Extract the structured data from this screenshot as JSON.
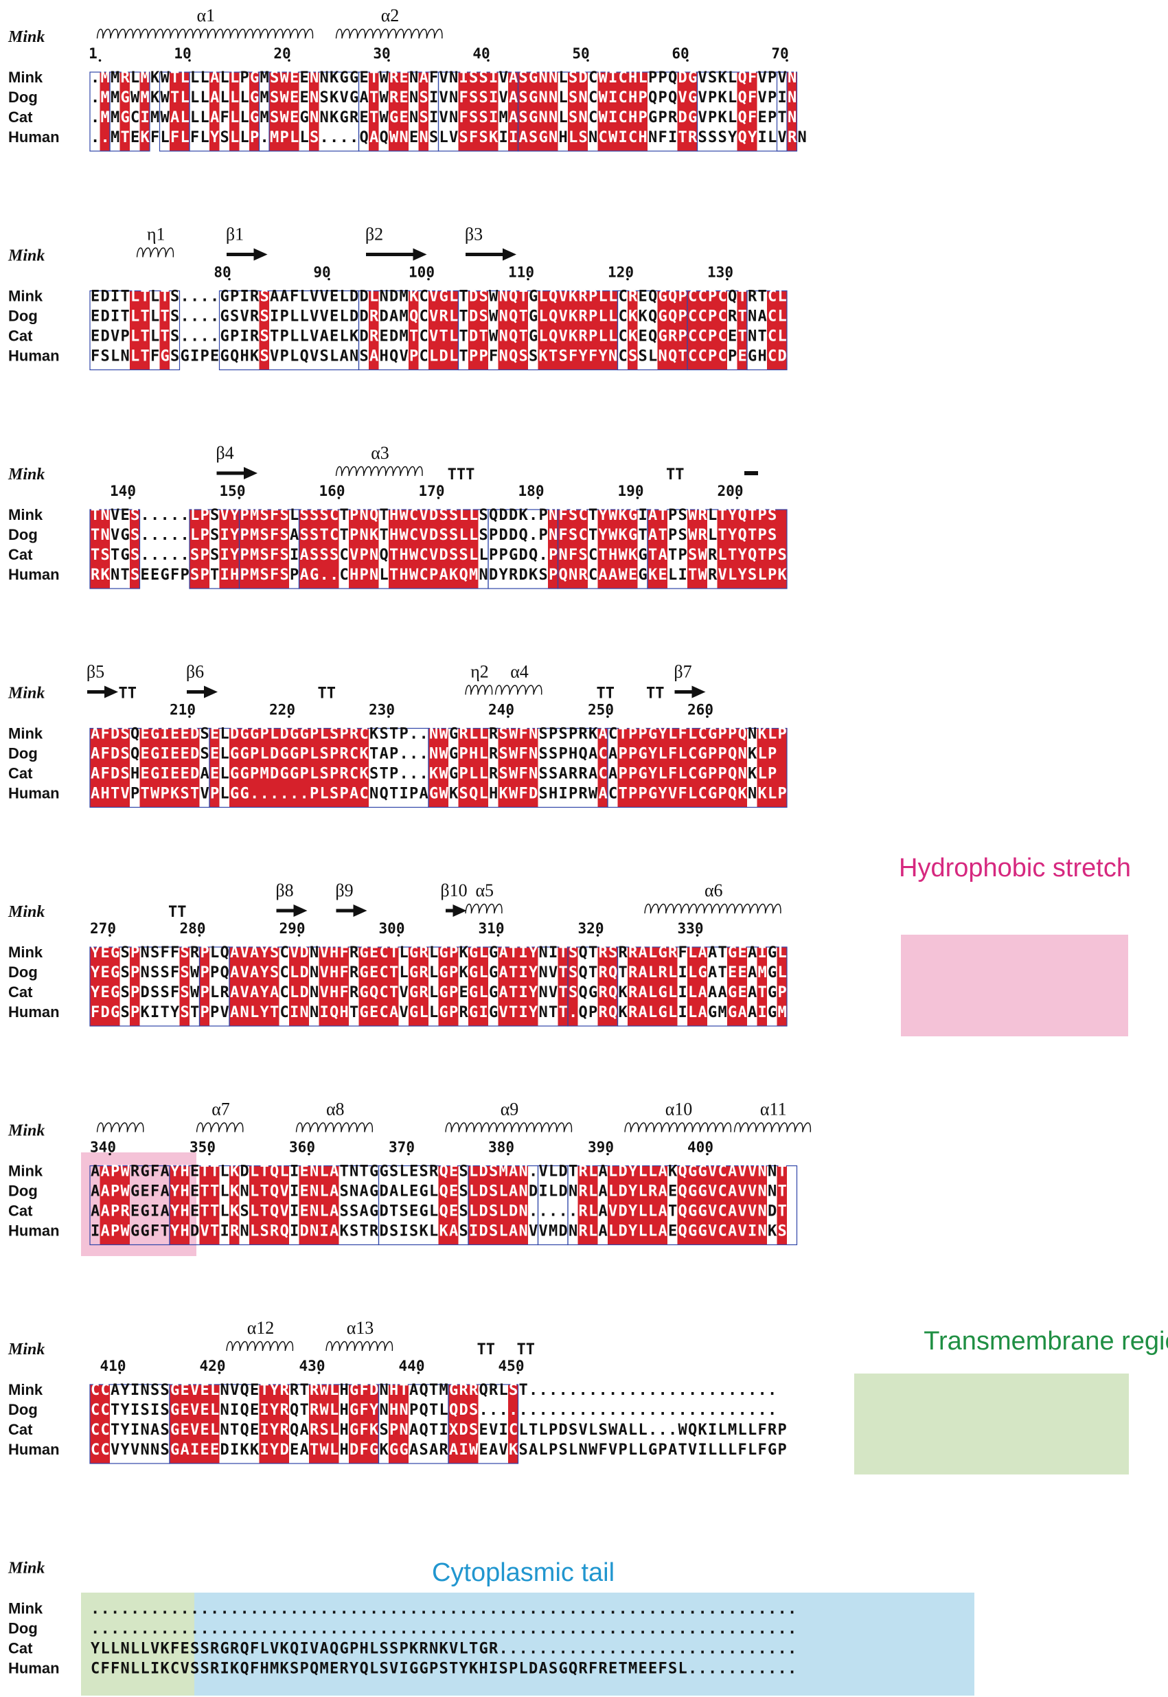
{
  "reference_label": "Mink",
  "species": [
    "Mink",
    "Dog",
    "Cat",
    "Human"
  ],
  "colors": {
    "identical_bg": "#d6212b",
    "identical_fg": "#ffffff",
    "similar_fg": "#d6212b",
    "box": "#2f45a8",
    "text": "#111111",
    "hydrophobic_bg": "#f4c2d7",
    "hydrophobic_label": "#d6287f",
    "tm_bg": "#d5e6c5",
    "tm_label": "#1f8f43",
    "cyto_bg": "#bfe0f0",
    "cyto_label": "#2196cf"
  },
  "blocks": [
    {
      "rows": [
        ".MMRLMKWTLLLALLPGMSWEENNKGGETWRENAFVNISSIVASGNNLSDCWICHLPPQDGVSKLQFVPVN",
        ".MMGWMKWTLLLALLLGMSWEENSKVGATWRENSIVNFSSIVASGNNLSNCWICHPQPQVGVPKLQFVPIN",
        ".MMGCIMWALLLAFLLGMSWEGNNKGRETWGENSIVNFSSIMASGNNLSNCWICHPGPRDGVPKLQFEPTN",
        "..MTEKFLFLFLYSLLP.MPLLS....QAQWNENSLVSFSKIIASGNHLSNCWICHNFITRSSSYQYILVRN"
      ],
      "ticks": [
        {
          "c": 1,
          "t": "1"
        },
        {
          "c": 10,
          "t": "10"
        },
        {
          "c": 20,
          "t": "20"
        },
        {
          "c": 30,
          "t": "30"
        },
        {
          "c": 40,
          "t": "40"
        },
        {
          "c": 50,
          "t": "50"
        },
        {
          "c": 60,
          "t": "60"
        },
        {
          "c": 70,
          "t": "70"
        }
      ],
      "ss": [
        {
          "type": "helix",
          "s": 2,
          "e": 23,
          "label": "α1"
        },
        {
          "type": "helix",
          "s": 26,
          "e": 36,
          "label": "α2"
        }
      ],
      "red": [
        [
          2,
          2
        ],
        [
          4,
          4
        ],
        [
          6,
          6
        ],
        [
          9,
          10
        ],
        [
          13,
          13
        ],
        [
          15,
          15
        ],
        [
          17,
          17
        ],
        [
          19,
          21
        ],
        [
          23,
          23
        ],
        [
          29,
          29
        ],
        [
          31,
          32
        ],
        [
          34,
          34
        ],
        [
          38,
          41
        ],
        [
          43,
          47
        ],
        [
          49,
          50
        ],
        [
          52,
          56
        ],
        [
          60,
          61
        ],
        [
          66,
          67
        ],
        [
          71,
          71
        ]
      ],
      "boxes": [
        [
          1,
          2
        ],
        [
          3,
          6
        ],
        [
          8,
          10
        ],
        [
          11,
          18
        ],
        [
          18,
          27
        ],
        [
          28,
          35
        ],
        [
          36,
          43
        ],
        [
          44,
          61
        ],
        [
          62,
          70
        ],
        [
          70,
          71
        ]
      ]
    },
    {
      "rows": [
        "EDITLTLTS....GPIRSAAFLVVELDDLNDMKCVGLTDSWNQTGLQVKRPLLCREQGQPCCPCQTRTCL",
        "EDITLTLTS....GSVRSIPLLVVELDDRDAMQCVRLTDSWNQTGLQVKRPLLCKKQGQPCCPCRTNACL",
        "EDVPLTLTS....GPIRSTPLLVAELKDREDMTCVTLTDTWNQTGLQVKRPLLCKEQGRPCCPCETNTCL",
        "FSLNLTFGSGIPEGQHKSVPLQVSLANSAHQVPCLDLTPPFNQSSKTSFYFYNCSSLNQTCCPCPEGHCD"
      ],
      "ticks": [
        {
          "c": 14,
          "t": "80"
        },
        {
          "c": 24,
          "t": "90"
        },
        {
          "c": 34,
          "t": "100"
        },
        {
          "c": 44,
          "t": "110"
        },
        {
          "c": 54,
          "t": "120"
        },
        {
          "c": 64,
          "t": "130"
        }
      ],
      "ss": [
        {
          "type": "turn",
          "s": 6,
          "e": 9,
          "label": "η1"
        },
        {
          "type": "strand",
          "s": 15,
          "e": 18,
          "label": "β1"
        },
        {
          "type": "strand",
          "s": 29,
          "e": 34,
          "label": "β2"
        },
        {
          "type": "strand",
          "s": 39,
          "e": 43,
          "label": "β3"
        }
      ],
      "red": [
        [
          5,
          6
        ],
        [
          8,
          8
        ],
        [
          18,
          18
        ],
        [
          29,
          29
        ],
        [
          33,
          33
        ],
        [
          35,
          37
        ],
        [
          39,
          40
        ],
        [
          42,
          44
        ],
        [
          46,
          53
        ],
        [
          55,
          55
        ],
        [
          58,
          64
        ],
        [
          66,
          66
        ],
        [
          69,
          70
        ]
      ],
      "boxes": [
        [
          1,
          9
        ],
        [
          14,
          27
        ],
        [
          28,
          37
        ],
        [
          38,
          53
        ],
        [
          54,
          60
        ],
        [
          61,
          66
        ],
        [
          67,
          70
        ]
      ]
    },
    {
      "rows": [
        "TNVES.....LPSVYPMSFSLSSSCTPNQTHWCVDSSLLSQDDK.PNFSCTYWKGIATPSWRLTYQTPS",
        "TNVGS.....LPSIYPMSFSASSTCTPNKTHWCVDSSLLSPDDQ.PNFSCTYWKGTATPSWRLTYQTPS",
        "TSTGS.....SPSIYPMSFSIASSSCVPNQTHWCVDSSLLPPGDQ.PNFSCTHWKGTATPSWRLTYQTPS",
        "RKNTSEEGFPSPTIHPMSFSPAG..CHPNLTHWCPAKQMNDYRDKSPQNRCAAWEGKELITWRVLYSLPK"
      ],
      "ticks": [
        {
          "c": 4,
          "t": "140"
        },
        {
          "c": 15,
          "t": "150"
        },
        {
          "c": 25,
          "t": "160"
        },
        {
          "c": 35,
          "t": "170"
        },
        {
          "c": 45,
          "t": "180"
        },
        {
          "c": 55,
          "t": "190"
        },
        {
          "c": 65,
          "t": "200"
        }
      ],
      "ss": [
        {
          "type": "strand",
          "s": 14,
          "e": 17,
          "label": "β4"
        },
        {
          "type": "helix",
          "s": 26,
          "e": 34,
          "label": "α3"
        },
        {
          "type": "tt",
          "s": 37,
          "e": 39,
          "label": "TTT"
        },
        {
          "type": "tt",
          "s": 59,
          "e": 60,
          "label": "TT"
        },
        {
          "type": "bar",
          "s": 67,
          "e": 67,
          "label": ""
        }
      ],
      "red": [
        [
          1,
          2
        ],
        [
          5,
          5
        ],
        [
          11,
          12
        ],
        [
          14,
          15
        ],
        [
          16,
          20
        ],
        [
          22,
          25
        ],
        [
          27,
          29
        ],
        [
          31,
          35
        ],
        [
          36,
          39
        ],
        [
          47,
          50
        ],
        [
          52,
          55
        ],
        [
          57,
          58
        ],
        [
          61,
          62
        ],
        [
          64,
          70
        ]
      ],
      "boxes": [
        [
          1,
          5
        ],
        [
          11,
          15
        ],
        [
          16,
          21
        ],
        [
          22,
          40
        ],
        [
          41,
          47
        ],
        [
          48,
          56
        ],
        [
          57,
          70
        ]
      ]
    },
    {
      "rows": [
        "AFDSQEGIEEDSELDGGPLDGGPLSPRCKSTP..NWGRLLRSWFNSPSPRKACTPPGYLFLCGPPQNKLP",
        "AFDSQEGIEEDSELGGPLDGGPLSPRCKTAP...NWGPHLRSWFNSSPHQACAPPGYLFLCGPPQNKLP",
        "AFDSHEGIEEDAELGGPMDGGPLSPRCKSTP...KWGPLLRSWFNSSARRACAPPGYLFLCGPPQNKLP",
        "AHTVPTWPKSTVPLGG......PLSPACNQTIPAGWKSQLHKWFDSHIPRWACTPPGYVFLCGPQKNKLP"
      ],
      "ticks": [
        {
          "c": 10,
          "t": "210"
        },
        {
          "c": 20,
          "t": "220"
        },
        {
          "c": 30,
          "t": "230"
        },
        {
          "c": 42,
          "t": "240"
        },
        {
          "c": 52,
          "t": "250"
        },
        {
          "c": 62,
          "t": "260"
        }
      ],
      "ss": [
        {
          "type": "strand",
          "s": 1,
          "e": 3,
          "label": "β5"
        },
        {
          "type": "tt",
          "s": 4,
          "e": 5,
          "label": "TT"
        },
        {
          "type": "strand",
          "s": 11,
          "e": 13,
          "label": "β6"
        },
        {
          "type": "tt",
          "s": 24,
          "e": 25,
          "label": "TT"
        },
        {
          "type": "turn",
          "s": 39,
          "e": 41,
          "label": "η2"
        },
        {
          "type": "helix",
          "s": 42,
          "e": 46,
          "label": "α4"
        },
        {
          "type": "tt",
          "s": 52,
          "e": 53,
          "label": "TT"
        },
        {
          "type": "tt",
          "s": 57,
          "e": 58,
          "label": "TT"
        },
        {
          "type": "strand",
          "s": 60,
          "e": 62,
          "label": "β7"
        }
      ],
      "red": [
        [
          1,
          4
        ],
        [
          6,
          11
        ],
        [
          13,
          13
        ],
        [
          15,
          28
        ],
        [
          35,
          36
        ],
        [
          38,
          40
        ],
        [
          42,
          45
        ],
        [
          52,
          52
        ],
        [
          54,
          58
        ],
        [
          59,
          62
        ],
        [
          63,
          66
        ],
        [
          68,
          70
        ]
      ],
      "boxes": [
        [
          1,
          12
        ],
        [
          13,
          34
        ],
        [
          35,
          52
        ],
        [
          53,
          70
        ]
      ]
    },
    {
      "rows": [
        "YEGSPNSFFSRPLQAVAYSCVDNVHFRGECTLGRLGPKGLGATIYNITSQTRSRRALGRFLAATGEAIGL",
        "YEGSPNSSFSWPPQAVAYSCLDNVHFRGECTLGRLGPKGLGATIYNVTSQTRQTRALRLILGATEEAMGL",
        "YEGSPDSSFSWPLRAVAYACLDNVHFRGQCTVGRLGPEGLGATIYNVTSQGRQKRALGLILAAAGEATGP",
        "FDGSPKITYSTPPVANLYTCINNIQHTGECAVGLLGPRGIGVTIYNTT.QPRQKRALGLILAGMGAAIGM"
      ],
      "ticks": [
        {
          "c": 2,
          "t": "270"
        },
        {
          "c": 11,
          "t": "280"
        },
        {
          "c": 21,
          "t": "290"
        },
        {
          "c": 31,
          "t": "300"
        },
        {
          "c": 41,
          "t": "310"
        },
        {
          "c": 51,
          "t": "320"
        },
        {
          "c": 61,
          "t": "330"
        }
      ],
      "ss": [
        {
          "type": "tt",
          "s": 9,
          "e": 10,
          "label": "TT"
        },
        {
          "type": "strand",
          "s": 20,
          "e": 22,
          "label": "β8"
        },
        {
          "type": "strand",
          "s": 26,
          "e": 28,
          "label": "β9"
        },
        {
          "type": "strand",
          "s": 37,
          "e": 38,
          "label": "β10"
        },
        {
          "type": "helix",
          "s": 39,
          "e": 42,
          "label": "α5"
        },
        {
          "type": "helix",
          "s": 57,
          "e": 70,
          "label": "α6"
        }
      ],
      "red": [
        [
          1,
          3
        ],
        [
          5,
          5
        ],
        [
          10,
          10
        ],
        [
          12,
          12
        ],
        [
          15,
          19
        ],
        [
          21,
          22
        ],
        [
          24,
          26
        ],
        [
          28,
          31
        ],
        [
          33,
          34
        ],
        [
          36,
          37
        ],
        [
          39,
          40
        ],
        [
          42,
          45
        ],
        [
          48,
          49
        ],
        [
          52,
          53
        ],
        [
          55,
          57
        ],
        [
          58,
          59
        ],
        [
          61,
          62
        ],
        [
          65,
          66
        ],
        [
          68,
          68
        ],
        [
          70,
          70
        ]
      ],
      "boxes": [
        [
          1,
          11
        ],
        [
          12,
          14
        ],
        [
          15,
          48
        ],
        [
          49,
          53
        ],
        [
          54,
          70
        ]
      ]
    },
    {
      "rows": [
        "AAPWRGFAYHETTLKDLTQLIENLATNTGGSLESRQESLDSMAN.VLDTRLALDYLLAKQGGVCAVVNNT",
        "AAPWGEFAYHETTLKNLTQVIENLASNAGDALEGLQESLDSLANDILDNRLALDYLRAEQGGVCAVVNNT",
        "AAPREGIAYHETTLKSLTQVIENLASSAGDTSEGLQESLDSLDN.....RLAVDYLLATQGGVCAVVNDT",
        "IAPWGGFTYHDVTIRNLSRQIDNIAKSTRDSISKLKASIDSLANVVMDNRLALDYLLAEQGGVCAVINKS"
      ],
      "ticks": [
        {
          "c": 2,
          "t": "340"
        },
        {
          "c": 12,
          "t": "350"
        },
        {
          "c": 22,
          "t": "360"
        },
        {
          "c": 32,
          "t": "370"
        },
        {
          "c": 42,
          "t": "380"
        },
        {
          "c": 52,
          "t": "390"
        },
        {
          "c": 62,
          "t": "400"
        }
      ],
      "ss": [
        {
          "type": "helix",
          "s": 2,
          "e": 6,
          "label": ""
        },
        {
          "type": "helix",
          "s": 12,
          "e": 16,
          "label": "α7"
        },
        {
          "type": "helix",
          "s": 22,
          "e": 29,
          "label": "α8"
        },
        {
          "type": "helix",
          "s": 37,
          "e": 49,
          "label": "α9"
        },
        {
          "type": "helix",
          "s": 55,
          "e": 65,
          "label": "α10"
        },
        {
          "type": "helix",
          "s": 66,
          "e": 73,
          "label": "α11"
        }
      ],
      "red": [
        [
          2,
          4
        ],
        [
          9,
          10
        ],
        [
          12,
          13
        ],
        [
          15,
          15
        ],
        [
          17,
          20
        ],
        [
          22,
          25
        ],
        [
          36,
          37
        ],
        [
          39,
          44
        ],
        [
          50,
          51
        ],
        [
          53,
          58
        ],
        [
          60,
          63
        ],
        [
          64,
          68
        ],
        [
          70,
          70
        ]
      ],
      "boxes": [
        [
          1,
          8
        ],
        [
          9,
          29
        ],
        [
          30,
          38
        ],
        [
          39,
          45
        ],
        [
          46,
          48
        ],
        [
          49,
          71
        ]
      ]
    },
    {
      "rows": [
        "CCAYINSSGEVELNVQETYRRTRWLHGFDNHTAQTMGRRQRLST.........................",
        "CCTYISISGEVELNIQEIYRQTRWLHGFYNHNPQTLQDS..............................",
        "CCTYINASGEVELNTQEIYRQARSLHGFKSPNAQTIXDSEVICLTLPDSVLSWALL...WQKILMLLFRP",
        "CCVYVNNSGAIEEDIKKIYDEATWLHDFGKGGASARAIWEAVKSALPSLNWFVPLLGPATVILLLFLFGP"
      ],
      "ticks": [
        {
          "c": 3,
          "t": "410"
        },
        {
          "c": 13,
          "t": "420"
        },
        {
          "c": 23,
          "t": "430"
        },
        {
          "c": 33,
          "t": "440"
        },
        {
          "c": 43,
          "t": "450"
        }
      ],
      "ss": [
        {
          "type": "helix",
          "s": 15,
          "e": 21,
          "label": "α12"
        },
        {
          "type": "helix",
          "s": 25,
          "e": 31,
          "label": "α13"
        },
        {
          "type": "tt",
          "s": 40,
          "e": 41,
          "label": "TT"
        },
        {
          "type": "tt",
          "s": 44,
          "e": 45,
          "label": "TT"
        }
      ],
      "red": [
        [
          1,
          2
        ],
        [
          9,
          13
        ],
        [
          18,
          20
        ],
        [
          23,
          25
        ],
        [
          27,
          29
        ],
        [
          31,
          32
        ],
        [
          37,
          39
        ],
        [
          43,
          43
        ]
      ],
      "boxes": [
        [
          1,
          8
        ],
        [
          9,
          29
        ],
        [
          30,
          36
        ],
        [
          37,
          43
        ]
      ]
    },
    {
      "rows": [
        ".......................................................................",
        ".......................................................................",
        "YLLNLLVKFESSRGRQFLVKQIVAQGPHLSSPKRNKVLTGR..............................",
        "CFFNLLIKCVSSRIKQFHMKSPQMERYQLSVIGGPSTYKHISPLDASGQRFRETMEEFSL..........."
      ],
      "ticks": [],
      "ss": [],
      "red": [],
      "boxes": []
    }
  ],
  "regions": {
    "hydrophobic": "Hydrophobic stretch",
    "transmembrane": "Transmembrane region",
    "cytoplasmic": "Cytoplasmic tail"
  }
}
